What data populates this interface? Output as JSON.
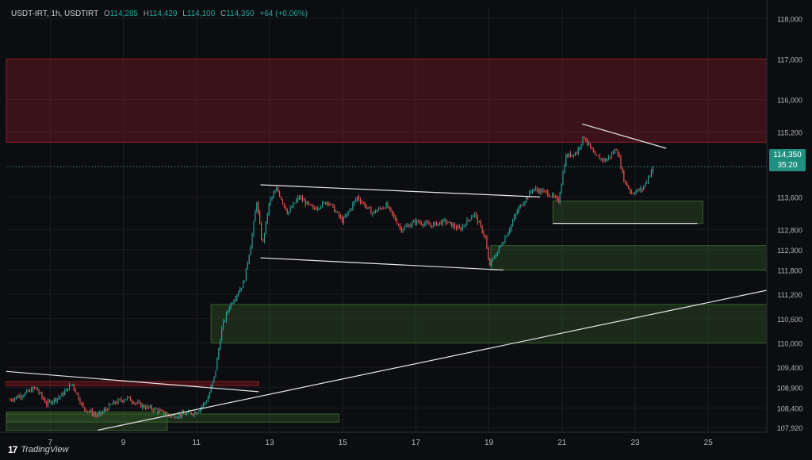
{
  "header": {
    "symbol": "USDT-IRT, 1h, USDTIRT",
    "open_label": "O",
    "open": "114,285",
    "high_label": "H",
    "high": "114,429",
    "low_label": "L",
    "low": "114,100",
    "close_label": "C",
    "close": "114,350",
    "change": "+64 (+0.06%)"
  },
  "price_tag": {
    "price": "114,350",
    "countdown": "35:20"
  },
  "branding": {
    "logo_icon": "tradingview-logo-icon",
    "name": "TradingView"
  },
  "colors": {
    "background": "#0c0d10",
    "up": "#26a69a",
    "down": "#ef5350",
    "supply_zone": "#a01e28",
    "demand_zone": "#3b6b2e",
    "trendline": "#e6e6e6",
    "axis_text": "#b2b5be"
  },
  "chart_data": {
    "type": "candlestick",
    "timeframe": "1h",
    "x_ticks": [
      "7",
      "9",
      "11",
      "13",
      "15",
      "17",
      "19",
      "21",
      "23",
      "25"
    ],
    "y_ticks": [
      118000,
      117000,
      116000,
      115200,
      114350,
      113600,
      112800,
      112300,
      111800,
      111200,
      110600,
      110000,
      109400,
      108900,
      108400,
      107920
    ],
    "y_tick_labels": [
      "118,000",
      "117,000",
      "116,000",
      "115,200",
      "114,350",
      "113,600",
      "112,800",
      "112,300",
      "111,800",
      "111,200",
      "110,600",
      "110,000",
      "109,400",
      "108,900",
      "108,400",
      "107,920"
    ],
    "ylim": [
      107800,
      118300
    ],
    "xlim": [
      5.8,
      26.6
    ],
    "last_price": 114350,
    "price_path": [
      [
        5.9,
        108600
      ],
      [
        6.3,
        108750
      ],
      [
        6.6,
        108900
      ],
      [
        6.9,
        108500
      ],
      [
        7.3,
        108700
      ],
      [
        7.6,
        109000
      ],
      [
        7.9,
        108400
      ],
      [
        8.3,
        108200
      ],
      [
        8.7,
        108500
      ],
      [
        9.1,
        108650
      ],
      [
        9.5,
        108450
      ],
      [
        9.9,
        108350
      ],
      [
        10.3,
        108200
      ],
      [
        10.7,
        108250
      ],
      [
        11.0,
        108300
      ],
      [
        11.3,
        108600
      ],
      [
        11.5,
        109200
      ],
      [
        11.7,
        110400
      ],
      [
        11.9,
        110900
      ],
      [
        12.1,
        111200
      ],
      [
        12.3,
        111500
      ],
      [
        12.5,
        112500
      ],
      [
        12.65,
        113500
      ],
      [
        12.8,
        112400
      ],
      [
        13.0,
        113500
      ],
      [
        13.2,
        113800
      ],
      [
        13.5,
        113200
      ],
      [
        13.8,
        113600
      ],
      [
        14.2,
        113300
      ],
      [
        14.6,
        113500
      ],
      [
        15.0,
        113000
      ],
      [
        15.4,
        113600
      ],
      [
        15.8,
        113200
      ],
      [
        16.2,
        113400
      ],
      [
        16.6,
        112800
      ],
      [
        17.0,
        113000
      ],
      [
        17.4,
        112900
      ],
      [
        17.8,
        113000
      ],
      [
        18.2,
        112800
      ],
      [
        18.6,
        113200
      ],
      [
        18.9,
        112600
      ],
      [
        19.0,
        111900
      ],
      [
        19.2,
        112200
      ],
      [
        19.5,
        112700
      ],
      [
        19.8,
        113300
      ],
      [
        20.2,
        113800
      ],
      [
        20.6,
        113700
      ],
      [
        20.9,
        113500
      ],
      [
        21.1,
        114600
      ],
      [
        21.4,
        114700
      ],
      [
        21.6,
        115100
      ],
      [
        21.9,
        114600
      ],
      [
        22.2,
        114500
      ],
      [
        22.5,
        114800
      ],
      [
        22.7,
        114000
      ],
      [
        22.9,
        113700
      ],
      [
        23.2,
        113800
      ],
      [
        23.5,
        114350
      ]
    ],
    "zones": [
      {
        "kind": "supply",
        "x": [
          5.8,
          26.6
        ],
        "y": [
          114950,
          117000
        ]
      },
      {
        "kind": "supply",
        "x": [
          5.8,
          12.7
        ],
        "y": [
          108950,
          109050
        ]
      },
      {
        "kind": "demand",
        "x": [
          20.75,
          24.85
        ],
        "y": [
          112950,
          113500
        ]
      },
      {
        "kind": "demand",
        "x": [
          19.05,
          26.6
        ],
        "y": [
          111800,
          112400
        ]
      },
      {
        "kind": "demand",
        "x": [
          11.4,
          26.6
        ],
        "y": [
          110000,
          110950
        ]
      },
      {
        "kind": "demand",
        "x": [
          5.8,
          14.9
        ],
        "y": [
          108050,
          108250
        ]
      },
      {
        "kind": "demand",
        "x": [
          5.8,
          10.2
        ],
        "y": [
          107850,
          108300
        ]
      }
    ],
    "trendlines": [
      {
        "from": [
          12.75,
          113900
        ],
        "to": [
          20.4,
          113600
        ]
      },
      {
        "from": [
          12.75,
          112100
        ],
        "to": [
          19.4,
          111800
        ]
      },
      {
        "from": [
          21.55,
          115400
        ],
        "to": [
          23.85,
          114800
        ]
      },
      {
        "from": [
          5.8,
          109300
        ],
        "to": [
          12.7,
          108800
        ]
      },
      {
        "from": [
          8.3,
          107850
        ],
        "to": [
          26.6,
          111300
        ]
      },
      {
        "from": [
          20.75,
          112950
        ],
        "to": [
          24.7,
          112950
        ]
      }
    ]
  }
}
